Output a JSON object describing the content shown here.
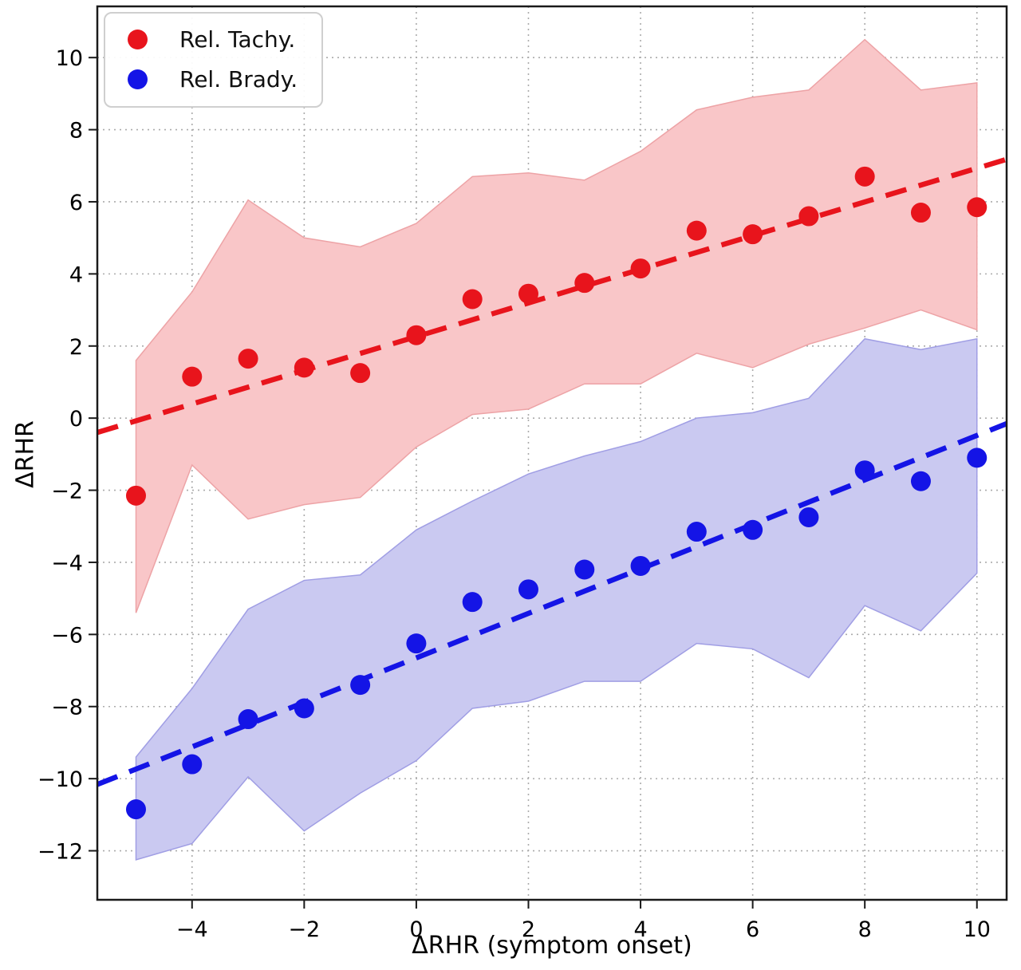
{
  "figure": {
    "xlabel": "ΔRHR (symptom onset)",
    "ylabel": "ΔRHR"
  },
  "chart_data": {
    "type": "scatter",
    "title": "",
    "xlabel": "ΔRHR (symptom onset)",
    "ylabel": "ΔRHR",
    "grid": true,
    "legend_position": "upper left",
    "xlim": [
      -5.69,
      10.53
    ],
    "ylim": [
      -13.36,
      11.42
    ],
    "xtick_values": [
      -4,
      -2,
      0,
      2,
      4,
      6,
      8,
      10
    ],
    "xtick_labels": [
      "−4",
      "−2",
      "0",
      "2",
      "4",
      "6",
      "8",
      "10"
    ],
    "ytick_values": [
      10,
      8,
      6,
      4,
      2,
      0,
      -2,
      -4,
      -6,
      -8,
      -10,
      -12
    ],
    "ytick_labels": [
      "10",
      "8",
      "6",
      "4",
      "2",
      "0",
      "−2",
      "−4",
      "−6",
      "−8",
      "−10",
      "−12"
    ],
    "x": [
      -5,
      -4,
      -3,
      -2,
      -1,
      0,
      1,
      2,
      3,
      4,
      5,
      6,
      7,
      8,
      9,
      10
    ],
    "series": [
      {
        "name": "Rel. Tachy.",
        "color": "#e8141c",
        "band_fill": "#f9c6c8",
        "band_edge": "#eda3a6",
        "values": [
          -2.15,
          1.15,
          1.65,
          1.4,
          1.25,
          2.3,
          3.3,
          3.45,
          3.75,
          4.15,
          5.2,
          5.1,
          5.6,
          6.7,
          5.7,
          5.85
        ],
        "band_upper": [
          1.6,
          3.5,
          6.05,
          5.0,
          4.75,
          5.4,
          6.7,
          6.8,
          6.6,
          7.4,
          8.55,
          8.9,
          9.1,
          10.5,
          9.1,
          9.3
        ],
        "band_lower": [
          -5.4,
          -1.3,
          -2.8,
          -2.4,
          -2.2,
          -0.8,
          0.1,
          0.25,
          0.95,
          0.95,
          1.8,
          1.4,
          2.05,
          2.5,
          3.0,
          2.45
        ],
        "trend": {
          "slope": 0.467,
          "intercept": 2.26
        }
      },
      {
        "name": "Rel. Brady.",
        "color": "#1414e6",
        "band_fill": "#cac9f1",
        "band_edge": "#a09ee4",
        "values": [
          -10.85,
          -9.6,
          -8.35,
          -8.05,
          -7.4,
          -6.25,
          -5.1,
          -4.75,
          -4.2,
          -4.1,
          -3.15,
          -3.1,
          -2.75,
          -1.45,
          -1.75,
          -1.1
        ],
        "band_upper": [
          -9.4,
          -7.5,
          -5.3,
          -4.5,
          -4.35,
          -3.1,
          -2.3,
          -1.55,
          -1.05,
          -0.65,
          0.0,
          0.15,
          0.55,
          2.2,
          1.9,
          2.2
        ],
        "band_lower": [
          -12.25,
          -11.8,
          -9.95,
          -11.45,
          -10.4,
          -9.5,
          -8.05,
          -7.85,
          -7.3,
          -7.3,
          -6.25,
          -6.4,
          -7.2,
          -5.2,
          -5.9,
          -4.3
        ],
        "trend": {
          "slope": 0.617,
          "intercept": -6.65
        }
      }
    ]
  }
}
